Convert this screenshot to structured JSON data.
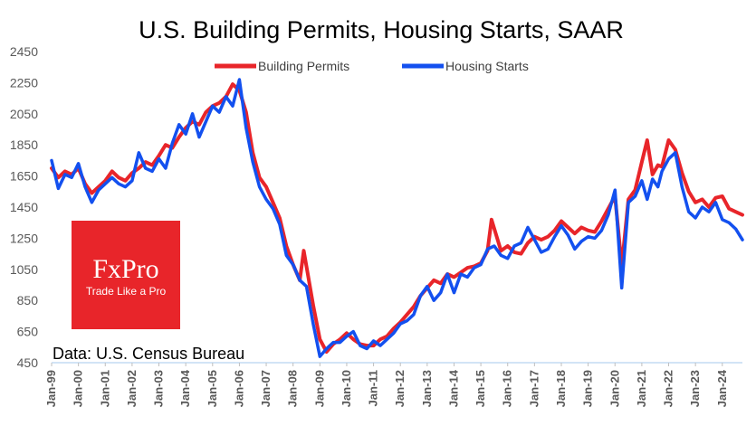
{
  "chart_data": {
    "type": "line",
    "title": "U.S. Building Permits, Housing Starts, SAAR",
    "source": "Data: U.S. Census Bureau",
    "ylim": [
      450,
      2450
    ],
    "yticks": [
      450,
      650,
      850,
      1050,
      1250,
      1450,
      1650,
      1850,
      2050,
      2250,
      2450
    ],
    "xlim": [
      1999.0,
      2024.75
    ],
    "xtick_labels": [
      "Jan-99",
      "Jan-00",
      "Jan-01",
      "Jan-02",
      "Jan-03",
      "Jan-04",
      "Jan-05",
      "Jan-06",
      "Jan-07",
      "Jan-08",
      "Jan-09",
      "Jan-10",
      "Jan-11",
      "Jan-12",
      "Jan-13",
      "Jan-14",
      "Jan-15",
      "Jan-16",
      "Jan-17",
      "Jan-18",
      "Jan-19",
      "Jan-20",
      "Jan-21",
      "Jan-22",
      "Jan-23",
      "Jan-24"
    ],
    "legend_position": "top-center",
    "grid": false,
    "series": [
      {
        "name": "Building Permits",
        "color": "#e8252a",
        "points": [
          [
            1999.0,
            1700
          ],
          [
            1999.25,
            1640
          ],
          [
            1999.5,
            1680
          ],
          [
            1999.75,
            1660
          ],
          [
            2000.0,
            1700
          ],
          [
            2000.25,
            1600
          ],
          [
            2000.5,
            1540
          ],
          [
            2000.75,
            1580
          ],
          [
            2001.0,
            1620
          ],
          [
            2001.25,
            1680
          ],
          [
            2001.5,
            1640
          ],
          [
            2001.75,
            1620
          ],
          [
            2002.0,
            1670
          ],
          [
            2002.25,
            1700
          ],
          [
            2002.5,
            1740
          ],
          [
            2002.75,
            1720
          ],
          [
            2003.0,
            1780
          ],
          [
            2003.25,
            1850
          ],
          [
            2003.5,
            1830
          ],
          [
            2003.75,
            1900
          ],
          [
            2004.0,
            1960
          ],
          [
            2004.25,
            2000
          ],
          [
            2004.5,
            1980
          ],
          [
            2004.75,
            2060
          ],
          [
            2005.0,
            2100
          ],
          [
            2005.25,
            2120
          ],
          [
            2005.5,
            2160
          ],
          [
            2005.75,
            2240
          ],
          [
            2006.0,
            2200
          ],
          [
            2006.25,
            2060
          ],
          [
            2006.5,
            1800
          ],
          [
            2006.75,
            1640
          ],
          [
            2007.0,
            1580
          ],
          [
            2007.25,
            1480
          ],
          [
            2007.5,
            1380
          ],
          [
            2007.75,
            1200
          ],
          [
            2008.0,
            1080
          ],
          [
            2008.25,
            980
          ],
          [
            2008.4,
            1170
          ],
          [
            2008.75,
            820
          ],
          [
            2009.0,
            600
          ],
          [
            2009.25,
            520
          ],
          [
            2009.5,
            570
          ],
          [
            2009.75,
            600
          ],
          [
            2010.0,
            640
          ],
          [
            2010.25,
            600
          ],
          [
            2010.5,
            570
          ],
          [
            2010.75,
            560
          ],
          [
            2011.0,
            560
          ],
          [
            2011.25,
            600
          ],
          [
            2011.5,
            620
          ],
          [
            2011.75,
            670
          ],
          [
            2012.0,
            710
          ],
          [
            2012.25,
            760
          ],
          [
            2012.5,
            810
          ],
          [
            2012.75,
            880
          ],
          [
            2013.0,
            930
          ],
          [
            2013.25,
            980
          ],
          [
            2013.5,
            960
          ],
          [
            2013.75,
            1020
          ],
          [
            2014.0,
            1000
          ],
          [
            2014.25,
            1030
          ],
          [
            2014.5,
            1060
          ],
          [
            2014.75,
            1070
          ],
          [
            2015.0,
            1090
          ],
          [
            2015.25,
            1170
          ],
          [
            2015.4,
            1370
          ],
          [
            2015.75,
            1170
          ],
          [
            2016.0,
            1200
          ],
          [
            2016.25,
            1160
          ],
          [
            2016.5,
            1150
          ],
          [
            2016.75,
            1220
          ],
          [
            2017.0,
            1260
          ],
          [
            2017.25,
            1240
          ],
          [
            2017.5,
            1260
          ],
          [
            2017.75,
            1300
          ],
          [
            2018.0,
            1360
          ],
          [
            2018.25,
            1320
          ],
          [
            2018.5,
            1280
          ],
          [
            2018.75,
            1320
          ],
          [
            2019.0,
            1300
          ],
          [
            2019.25,
            1290
          ],
          [
            2019.5,
            1360
          ],
          [
            2019.75,
            1440
          ],
          [
            2020.0,
            1520
          ],
          [
            2020.25,
            1070
          ],
          [
            2020.5,
            1500
          ],
          [
            2020.75,
            1560
          ],
          [
            2021.0,
            1740
          ],
          [
            2021.2,
            1880
          ],
          [
            2021.4,
            1660
          ],
          [
            2021.6,
            1720
          ],
          [
            2021.75,
            1710
          ],
          [
            2022.0,
            1880
          ],
          [
            2022.25,
            1820
          ],
          [
            2022.5,
            1670
          ],
          [
            2022.75,
            1550
          ],
          [
            2023.0,
            1480
          ],
          [
            2023.25,
            1500
          ],
          [
            2023.5,
            1450
          ],
          [
            2023.75,
            1510
          ],
          [
            2024.0,
            1520
          ],
          [
            2024.25,
            1440
          ],
          [
            2024.5,
            1420
          ],
          [
            2024.75,
            1400
          ]
        ]
      },
      {
        "name": "Housing Starts",
        "color": "#1350ef",
        "points": [
          [
            1999.0,
            1750
          ],
          [
            1999.25,
            1570
          ],
          [
            1999.5,
            1660
          ],
          [
            1999.75,
            1640
          ],
          [
            2000.0,
            1730
          ],
          [
            2000.25,
            1580
          ],
          [
            2000.5,
            1480
          ],
          [
            2000.75,
            1560
          ],
          [
            2001.0,
            1600
          ],
          [
            2001.25,
            1640
          ],
          [
            2001.5,
            1600
          ],
          [
            2001.75,
            1580
          ],
          [
            2002.0,
            1620
          ],
          [
            2002.25,
            1800
          ],
          [
            2002.5,
            1700
          ],
          [
            2002.75,
            1680
          ],
          [
            2003.0,
            1760
          ],
          [
            2003.25,
            1700
          ],
          [
            2003.5,
            1860
          ],
          [
            2003.75,
            1980
          ],
          [
            2004.0,
            1920
          ],
          [
            2004.25,
            2050
          ],
          [
            2004.5,
            1900
          ],
          [
            2004.75,
            2000
          ],
          [
            2005.0,
            2100
          ],
          [
            2005.25,
            2060
          ],
          [
            2005.5,
            2160
          ],
          [
            2005.75,
            2100
          ],
          [
            2006.0,
            2270
          ],
          [
            2006.25,
            1960
          ],
          [
            2006.5,
            1740
          ],
          [
            2006.75,
            1580
          ],
          [
            2007.0,
            1500
          ],
          [
            2007.25,
            1440
          ],
          [
            2007.5,
            1340
          ],
          [
            2007.75,
            1140
          ],
          [
            2008.0,
            1080
          ],
          [
            2008.25,
            980
          ],
          [
            2008.5,
            940
          ],
          [
            2008.75,
            700
          ],
          [
            2009.0,
            490
          ],
          [
            2009.25,
            540
          ],
          [
            2009.5,
            580
          ],
          [
            2009.75,
            580
          ],
          [
            2010.0,
            620
          ],
          [
            2010.25,
            650
          ],
          [
            2010.5,
            560
          ],
          [
            2010.75,
            540
          ],
          [
            2011.0,
            590
          ],
          [
            2011.25,
            560
          ],
          [
            2011.5,
            600
          ],
          [
            2011.75,
            640
          ],
          [
            2012.0,
            700
          ],
          [
            2012.25,
            720
          ],
          [
            2012.5,
            760
          ],
          [
            2012.75,
            880
          ],
          [
            2013.0,
            940
          ],
          [
            2013.25,
            850
          ],
          [
            2013.5,
            900
          ],
          [
            2013.75,
            1020
          ],
          [
            2014.0,
            900
          ],
          [
            2014.25,
            1020
          ],
          [
            2014.5,
            1000
          ],
          [
            2014.75,
            1060
          ],
          [
            2015.0,
            1080
          ],
          [
            2015.25,
            1180
          ],
          [
            2015.5,
            1200
          ],
          [
            2015.75,
            1140
          ],
          [
            2016.0,
            1120
          ],
          [
            2016.25,
            1200
          ],
          [
            2016.5,
            1220
          ],
          [
            2016.75,
            1320
          ],
          [
            2017.0,
            1240
          ],
          [
            2017.25,
            1160
          ],
          [
            2017.5,
            1180
          ],
          [
            2017.75,
            1260
          ],
          [
            2018.0,
            1330
          ],
          [
            2018.25,
            1270
          ],
          [
            2018.5,
            1180
          ],
          [
            2018.75,
            1230
          ],
          [
            2019.0,
            1260
          ],
          [
            2019.25,
            1250
          ],
          [
            2019.5,
            1300
          ],
          [
            2019.75,
            1400
          ],
          [
            2020.0,
            1560
          ],
          [
            2020.25,
            930
          ],
          [
            2020.5,
            1480
          ],
          [
            2020.75,
            1520
          ],
          [
            2021.0,
            1620
          ],
          [
            2021.2,
            1500
          ],
          [
            2021.4,
            1630
          ],
          [
            2021.6,
            1580
          ],
          [
            2021.75,
            1680
          ],
          [
            2022.0,
            1760
          ],
          [
            2022.25,
            1800
          ],
          [
            2022.5,
            1580
          ],
          [
            2022.75,
            1420
          ],
          [
            2023.0,
            1380
          ],
          [
            2023.25,
            1450
          ],
          [
            2023.5,
            1420
          ],
          [
            2023.75,
            1480
          ],
          [
            2024.0,
            1370
          ],
          [
            2024.25,
            1350
          ],
          [
            2024.5,
            1310
          ],
          [
            2024.75,
            1240
          ]
        ]
      }
    ]
  },
  "logo": {
    "brand": "FxPro",
    "tagline": "Trade Like a Pro",
    "color": "#e8252a"
  }
}
